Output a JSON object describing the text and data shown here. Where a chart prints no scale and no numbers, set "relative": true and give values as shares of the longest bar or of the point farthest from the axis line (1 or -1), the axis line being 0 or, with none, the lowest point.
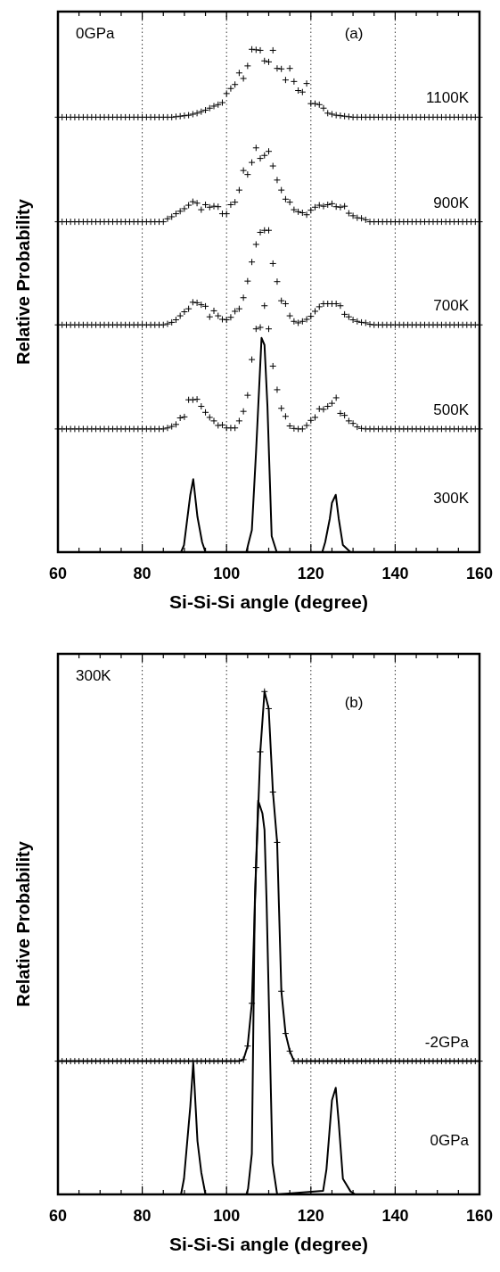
{
  "chart_data": [
    {
      "type": "scatter",
      "xlabel": "Si-Si-Si angle (degree)",
      "ylabel": "Relative Probability",
      "relative": true,
      "marker": "cross",
      "grid": "x",
      "xlim": [
        60,
        160
      ],
      "xticks": [
        60,
        {
          "value": 65,
          "label": null
        },
        {
          "value": 70,
          "label": null
        },
        {
          "value": 75,
          "label": null
        },
        80,
        {
          "value": 85,
          "label": null
        },
        {
          "value": 90,
          "label": null
        },
        {
          "value": 95,
          "label": null
        },
        100,
        {
          "value": 105,
          "label": null
        },
        {
          "value": 110,
          "label": null
        },
        {
          "value": 115,
          "label": null
        },
        120,
        {
          "value": 125,
          "label": null
        },
        {
          "value": 130,
          "label": null
        },
        {
          "value": 135,
          "label": null
        },
        140,
        {
          "value": 145,
          "label": null
        },
        {
          "value": 150,
          "label": null
        },
        {
          "value": 155,
          "label": null
        },
        160
      ],
      "annotations": [
        "0GPa",
        "(a)"
      ],
      "x": [
        60,
        61,
        62,
        63,
        64,
        65,
        66,
        67,
        68,
        69,
        70,
        71,
        72,
        73,
        74,
        75,
        76,
        77,
        78,
        79,
        80,
        81,
        82,
        83,
        84,
        85,
        86,
        87,
        88,
        89,
        90,
        91,
        92,
        93,
        94,
        95,
        96,
        97,
        98,
        99,
        100,
        101,
        102,
        103,
        104,
        105,
        106,
        107,
        108,
        109,
        110,
        111,
        112,
        113,
        114,
        115,
        116,
        117,
        118,
        119,
        120,
        121,
        122,
        123,
        124,
        125,
        126,
        127,
        128,
        129,
        130,
        131,
        132,
        133,
        134,
        135,
        136,
        137,
        138,
        139,
        140,
        141,
        142,
        143,
        144,
        145,
        146,
        147,
        148,
        149,
        150,
        151,
        152,
        153,
        154,
        155,
        156,
        157,
        158,
        159,
        160
      ],
      "series": [
        {
          "name": "1100K",
          "color": "#000000",
          "values": [
            0.865,
            0.865,
            0.865,
            0.865,
            0.865,
            0.865,
            0.865,
            0.865,
            0.865,
            0.865,
            0.865,
            0.865,
            0.865,
            0.865,
            0.865,
            0.865,
            0.865,
            0.865,
            0.865,
            0.865,
            0.865,
            0.865,
            0.865,
            0.865,
            0.865,
            0.865,
            0.865,
            0.865,
            0.866,
            0.867,
            0.868,
            0.869,
            0.871,
            0.873,
            0.876,
            0.879,
            0.883,
            0.887,
            0.89,
            0.894,
            0.912,
            0.922,
            0.93,
            0.953,
            0.942,
            0.967,
            1,
            0.999,
            0.998,
            0.977,
            0.975,
            0.998,
            0.962,
            0.961,
            0.939,
            0.962,
            0.936,
            0.918,
            0.915,
            0.932,
            0.892,
            0.892,
            0.89,
            0.883,
            0.873,
            0.871,
            0.869,
            0.868,
            0.867,
            0.866,
            0.865,
            0.865,
            0.865,
            0.865,
            0.865,
            0.865,
            0.865,
            0.865,
            0.865,
            0.865,
            0.865,
            0.865,
            0.865,
            0.865,
            0.865,
            0.865,
            0.865,
            0.865,
            0.865,
            0.865,
            0.865,
            0.865,
            0.865,
            0.865,
            0.865,
            0.865,
            0.865,
            0.865,
            0.865,
            0.865,
            0.865
          ]
        },
        {
          "name": "900K",
          "color": "#000000",
          "values": [
            0.657,
            0.657,
            0.657,
            0.657,
            0.657,
            0.657,
            0.657,
            0.657,
            0.657,
            0.657,
            0.657,
            0.657,
            0.657,
            0.657,
            0.657,
            0.657,
            0.657,
            0.657,
            0.657,
            0.657,
            0.657,
            0.657,
            0.657,
            0.657,
            0.657,
            0.657,
            0.663,
            0.667,
            0.673,
            0.678,
            0.683,
            0.69,
            0.697,
            0.694,
            0.681,
            0.691,
            0.686,
            0.688,
            0.687,
            0.673,
            0.673,
            0.691,
            0.696,
            0.72,
            0.759,
            0.751,
            0.775,
            0.804,
            0.783,
            0.789,
            0.797,
            0.768,
            0.74,
            0.72,
            0.702,
            0.696,
            0.681,
            0.677,
            0.675,
            0.671,
            0.68,
            0.686,
            0.69,
            0.688,
            0.691,
            0.693,
            0.687,
            0.686,
            0.688,
            0.674,
            0.669,
            0.665,
            0.664,
            0.661,
            0.657,
            0.657,
            0.657,
            0.657,
            0.657,
            0.657,
            0.657,
            0.657,
            0.657,
            0.657,
            0.657,
            0.657,
            0.657,
            0.657,
            0.657,
            0.657,
            0.657,
            0.657,
            0.657,
            0.657,
            0.657,
            0.657,
            0.657,
            0.657,
            0.657,
            0.657,
            0.657
          ]
        },
        {
          "name": "700K",
          "color": "#000000",
          "values": [
            0.452,
            0.452,
            0.452,
            0.452,
            0.452,
            0.452,
            0.452,
            0.452,
            0.452,
            0.452,
            0.452,
            0.452,
            0.452,
            0.452,
            0.452,
            0.452,
            0.452,
            0.452,
            0.452,
            0.452,
            0.452,
            0.452,
            0.452,
            0.452,
            0.452,
            0.452,
            0.454,
            0.457,
            0.462,
            0.47,
            0.478,
            0.484,
            0.497,
            0.496,
            0.492,
            0.489,
            0.468,
            0.48,
            0.47,
            0.463,
            0.462,
            0.467,
            0.479,
            0.484,
            0.506,
            0.539,
            0.577,
            0.612,
            0.636,
            0.64,
            0.64,
            0.574,
            0.538,
            0.5,
            0.494,
            0.47,
            0.459,
            0.456,
            0.459,
            0.463,
            0.469,
            0.479,
            0.488,
            0.494,
            0.494,
            0.494,
            0.494,
            0.49,
            0.473,
            0.468,
            0.462,
            0.459,
            0.457,
            0.456,
            0.453,
            0.452,
            0.452,
            0.452,
            0.452,
            0.452,
            0.452,
            0.452,
            0.452,
            0.452,
            0.452,
            0.452,
            0.452,
            0.452,
            0.452,
            0.452,
            0.452,
            0.452,
            0.452,
            0.452,
            0.452,
            0.452,
            0.452,
            0.452,
            0.452,
            0.452,
            0.452
          ]
        },
        {
          "name": "500K",
          "color": "#000000",
          "values": [
            0.245,
            0.245,
            0.245,
            0.245,
            0.245,
            0.245,
            0.245,
            0.245,
            0.245,
            0.245,
            0.245,
            0.245,
            0.245,
            0.245,
            0.245,
            0.245,
            0.245,
            0.245,
            0.245,
            0.245,
            0.245,
            0.245,
            0.245,
            0.245,
            0.245,
            0.245,
            0.247,
            0.25,
            0.254,
            0.267,
            0.269,
            0.303,
            0.303,
            0.304,
            0.29,
            0.278,
            0.268,
            0.261,
            0.252,
            0.253,
            0.247,
            0.247,
            0.247,
            0.261,
            0.28,
            0.312,
            0.383,
            0.444,
            0.447,
            0.49,
            0.444,
            0.37,
            0.323,
            0.286,
            0.27,
            0.251,
            0.246,
            0.245,
            0.245,
            0.252,
            0.262,
            0.268,
            0.285,
            0.284,
            0.29,
            0.296,
            0.307,
            0.276,
            0.272,
            0.261,
            0.256,
            0.249,
            0.246,
            0.245,
            0.245,
            0.245,
            0.245,
            0.245,
            0.245,
            0.245,
            0.245,
            0.245,
            0.245,
            0.245,
            0.245,
            0.245,
            0.245,
            0.245,
            0.245,
            0.245,
            0.245,
            0.245,
            0.245,
            0.245,
            0.245,
            0.245,
            0.245,
            0.245,
            0.245,
            0.245,
            0.245
          ]
        },
        {
          "name": "300K",
          "type": "line",
          "marker": "none",
          "color": "#000000",
          "x": [
            60,
            89.2,
            89.9,
            91.4,
            92.1,
            93.1,
            94.2,
            95,
            104.7,
            105.1,
            106,
            107,
            108.3,
            109,
            109.7,
            110.7,
            111.9,
            122.7,
            123.4,
            124.5,
            125,
            125.9,
            126.6,
            127.6,
            129.4,
            160
          ],
          "values": [
            0,
            0,
            0.014,
            0.114,
            0.145,
            0.07,
            0.02,
            0,
            0,
            0.014,
            0.044,
            0.2,
            0.426,
            0.412,
            0.29,
            0.032,
            0,
            0,
            0.02,
            0.067,
            0.098,
            0.114,
            0.067,
            0.014,
            0,
            0
          ]
        }
      ]
    },
    {
      "type": "line",
      "xlabel": "Si-Si-Si angle (degree)",
      "ylabel": "Relative Probability",
      "relative": true,
      "grid": "x",
      "xlim": [
        60,
        160
      ],
      "xticks": [
        60,
        {
          "value": 65,
          "label": null
        },
        {
          "value": 70,
          "label": null
        },
        {
          "value": 75,
          "label": null
        },
        80,
        {
          "value": 85,
          "label": null
        },
        {
          "value": 90,
          "label": null
        },
        {
          "value": 95,
          "label": null
        },
        100,
        {
          "value": 105,
          "label": null
        },
        {
          "value": 110,
          "label": null
        },
        {
          "value": 115,
          "label": null
        },
        120,
        {
          "value": 125,
          "label": null
        },
        {
          "value": 130,
          "label": null
        },
        {
          "value": 135,
          "label": null
        },
        140,
        {
          "value": 145,
          "label": null
        },
        {
          "value": 150,
          "label": null
        },
        {
          "value": 155,
          "label": null
        },
        160
      ],
      "annotations": [
        "300K",
        "(b)"
      ],
      "x": [
        60,
        61,
        62,
        63,
        64,
        65,
        66,
        67,
        68,
        69,
        70,
        71,
        72,
        73,
        74,
        75,
        76,
        77,
        78,
        79,
        80,
        81,
        82,
        83,
        84,
        85,
        86,
        87,
        88,
        89,
        90,
        91,
        92,
        93,
        94,
        95,
        96,
        97,
        98,
        99,
        100,
        101,
        102,
        103,
        104,
        105,
        106,
        107,
        108,
        109,
        110,
        111,
        112,
        113,
        114,
        115,
        116,
        117,
        118,
        119,
        120,
        121,
        122,
        123,
        124,
        125,
        126,
        127,
        128,
        129,
        130,
        131,
        132,
        133,
        134,
        135,
        136,
        137,
        138,
        139,
        140,
        141,
        142,
        143,
        144,
        145,
        146,
        147,
        148,
        149,
        150,
        151,
        152,
        153,
        154,
        155,
        156,
        157,
        158,
        159,
        160
      ],
      "series": [
        {
          "name": "-2GPa",
          "marker": "cross",
          "color": "#000000",
          "values": [
            0.265,
            0.265,
            0.265,
            0.265,
            0.265,
            0.265,
            0.265,
            0.265,
            0.265,
            0.265,
            0.265,
            0.265,
            0.265,
            0.265,
            0.265,
            0.265,
            0.265,
            0.265,
            0.265,
            0.265,
            0.265,
            0.265,
            0.265,
            0.265,
            0.265,
            0.265,
            0.265,
            0.265,
            0.265,
            0.265,
            0.265,
            0.265,
            0.265,
            0.265,
            0.265,
            0.265,
            0.265,
            0.265,
            0.265,
            0.265,
            0.265,
            0.265,
            0.265,
            0.265,
            0.268,
            0.295,
            0.38,
            0.65,
            0.88,
            1,
            0.966,
            0.8,
            0.7,
            0.404,
            0.32,
            0.285,
            0.265,
            0.265,
            0.265,
            0.265,
            0.265,
            0.265,
            0.265,
            0.265,
            0.265,
            0.265,
            0.265,
            0.265,
            0.265,
            0.265,
            0.265,
            0.265,
            0.265,
            0.265,
            0.265,
            0.265,
            0.265,
            0.265,
            0.265,
            0.265,
            0.265,
            0.265,
            0.265,
            0.265,
            0.265,
            0.265,
            0.265,
            0.265,
            0.265,
            0.265,
            0.265,
            0.265,
            0.265,
            0.265,
            0.265,
            0.265,
            0.265,
            0.265,
            0.265,
            0.265,
            0.265
          ]
        },
        {
          "name": "0GPa",
          "marker": "none",
          "color": "#000000",
          "x": [
            60,
            89.2,
            89.9,
            91.4,
            92.1,
            93.1,
            94,
            95,
            104.7,
            105.1,
            106,
            106.7,
            107.5,
            108.5,
            109,
            109.5,
            110.9,
            112,
            122.9,
            123.7,
            125,
            125.9,
            126.6,
            127.6,
            129.4,
            130.5,
            160
          ],
          "values": [
            0,
            0,
            0.031,
            0.175,
            0.262,
            0.106,
            0.044,
            0,
            0,
            0.011,
            0.081,
            0.58,
            0.783,
            0.758,
            0.725,
            0.58,
            0.062,
            0,
            0.007,
            0.05,
            0.187,
            0.212,
            0.144,
            0.031,
            0.006,
            0,
            0
          ]
        }
      ]
    }
  ]
}
